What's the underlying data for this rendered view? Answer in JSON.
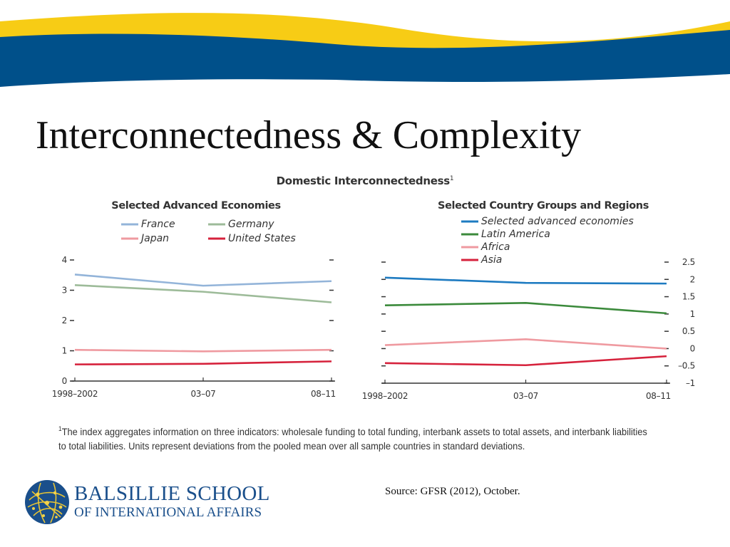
{
  "slide": {
    "title": "Interconnectedness & Complexity",
    "figure_title": "Domestic Interconnectedness",
    "figure_note_marker": "1",
    "footnote_marker": "1",
    "footnote": "The index aggregates information on three indicators: wholesale funding to total funding, interbank assets to total assets, and interbank liabilities to total liabilities. Units represent deviations from the pooled mean over all sample countries in standard deviations.",
    "source": "Source: GFSR (2012), October.",
    "school_line1": "BALSILLIE SCHOOL",
    "school_line2": "OF INTERNATIONAL AFFAIRS",
    "logo_icon": "globe-network-icon",
    "colors": {
      "banner_yellow": "#f7cc15",
      "banner_blue": "#00508a",
      "school_blue": "#1a4f8b"
    }
  },
  "chart_data": [
    {
      "type": "line",
      "title": "Selected Advanced Economies",
      "categories": [
        "1998–2002",
        "03–07",
        "08–11"
      ],
      "series": [
        {
          "name": "France",
          "values": [
            3.52,
            3.15,
            3.3
          ],
          "color": "#93b4d9"
        },
        {
          "name": "Germany",
          "values": [
            3.17,
            2.95,
            2.6
          ],
          "color": "#9dbb99"
        },
        {
          "name": "Japan",
          "values": [
            1.03,
            0.98,
            1.03
          ],
          "color": "#ef9aa0"
        },
        {
          "name": "United States",
          "values": [
            0.55,
            0.57,
            0.65
          ],
          "color": "#d6223c"
        }
      ],
      "yticks": [
        "0",
        "1",
        "2",
        "3",
        "4"
      ],
      "ylim": [
        0,
        4
      ],
      "ytick_side": "left",
      "grid": false
    },
    {
      "type": "line",
      "title": "Selected Country Groups and Regions",
      "categories": [
        "1998–2002",
        "03–07",
        "08–11"
      ],
      "series": [
        {
          "name": "Selected advanced economies",
          "values": [
            2.05,
            1.9,
            1.88
          ],
          "color": "#1e7bc1"
        },
        {
          "name": "Latin America",
          "values": [
            1.25,
            1.32,
            1.02
          ],
          "color": "#3b8a3b"
        },
        {
          "name": "Africa",
          "values": [
            0.1,
            0.27,
            0.0
          ],
          "color": "#ef9aa0"
        },
        {
          "name": "Asia",
          "values": [
            -0.42,
            -0.48,
            -0.22
          ],
          "color": "#d6223c"
        }
      ],
      "yticks": [
        "–1",
        "–0.5",
        "0",
        "0.5",
        "1",
        "1.5",
        "2",
        "2.5"
      ],
      "ylim": [
        -1,
        2.5
      ],
      "ytick_side": "right",
      "grid": false
    }
  ]
}
